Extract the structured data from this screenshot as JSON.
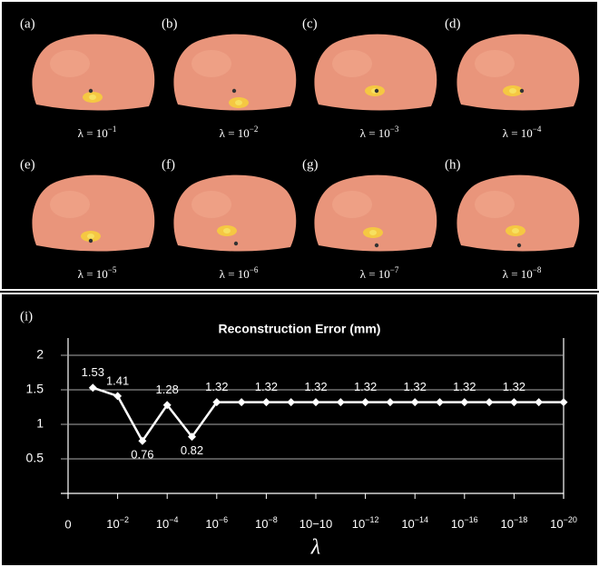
{
  "panels": [
    {
      "label": "(a)",
      "caption": "λ = 10−1"
    },
    {
      "label": "(b)",
      "caption": "λ = 10−2"
    },
    {
      "label": "(c)",
      "caption": "λ = 10−3"
    },
    {
      "label": "(d)",
      "caption": "λ = 10−4"
    },
    {
      "label": "(e)",
      "caption": "λ = 10−5"
    },
    {
      "label": "(f)",
      "caption": "λ = 10−6"
    },
    {
      "label": "(g)",
      "caption": "λ = 10−7"
    },
    {
      "label": "(h)",
      "caption": "λ = 10−8"
    }
  ],
  "chart_data": {
    "type": "line",
    "panel_label": "(i)",
    "title": "Reconstruction Error (mm)",
    "x_label": "λ",
    "x": [
      1,
      2,
      3,
      4,
      5,
      6,
      7,
      8,
      9,
      10,
      11,
      12,
      13,
      14,
      15,
      16,
      17,
      18,
      19,
      20
    ],
    "values": [
      1.53,
      1.41,
      0.76,
      1.28,
      0.82,
      1.32,
      1.32,
      1.32,
      1.32,
      1.32,
      1.32,
      1.32,
      1.32,
      1.32,
      1.32,
      1.32,
      1.32,
      1.32,
      1.32,
      1.32
    ],
    "value_labels": [
      "1.53",
      "1.41",
      "0.76",
      "1.28",
      "0.82",
      "1.32",
      null,
      "1.32",
      null,
      "1.32",
      null,
      "1.32",
      null,
      "1.32",
      null,
      "1.32",
      null,
      "1.32",
      null,
      null
    ],
    "color": "#ffffff",
    "xlim": [
      0,
      20
    ],
    "xticks": [
      0,
      {
        "value": 2,
        "label": "10−2"
      },
      {
        "value": 4,
        "label": "10−4"
      },
      {
        "value": 6,
        "label": "10−6"
      },
      {
        "value": 8,
        "label": "10−8"
      },
      {
        "value": 10,
        "label": "10−10"
      },
      {
        "value": 12,
        "label": "10−12"
      },
      {
        "value": 14,
        "label": "10−14"
      },
      {
        "value": 16,
        "label": "10−16"
      },
      {
        "value": 18,
        "label": "10−18"
      },
      {
        "value": 20,
        "label": "10−20"
      }
    ],
    "ylim": [
      0,
      2.25
    ],
    "yticks": [
      0.5,
      1,
      1.5,
      2
    ],
    "grid": true
  }
}
